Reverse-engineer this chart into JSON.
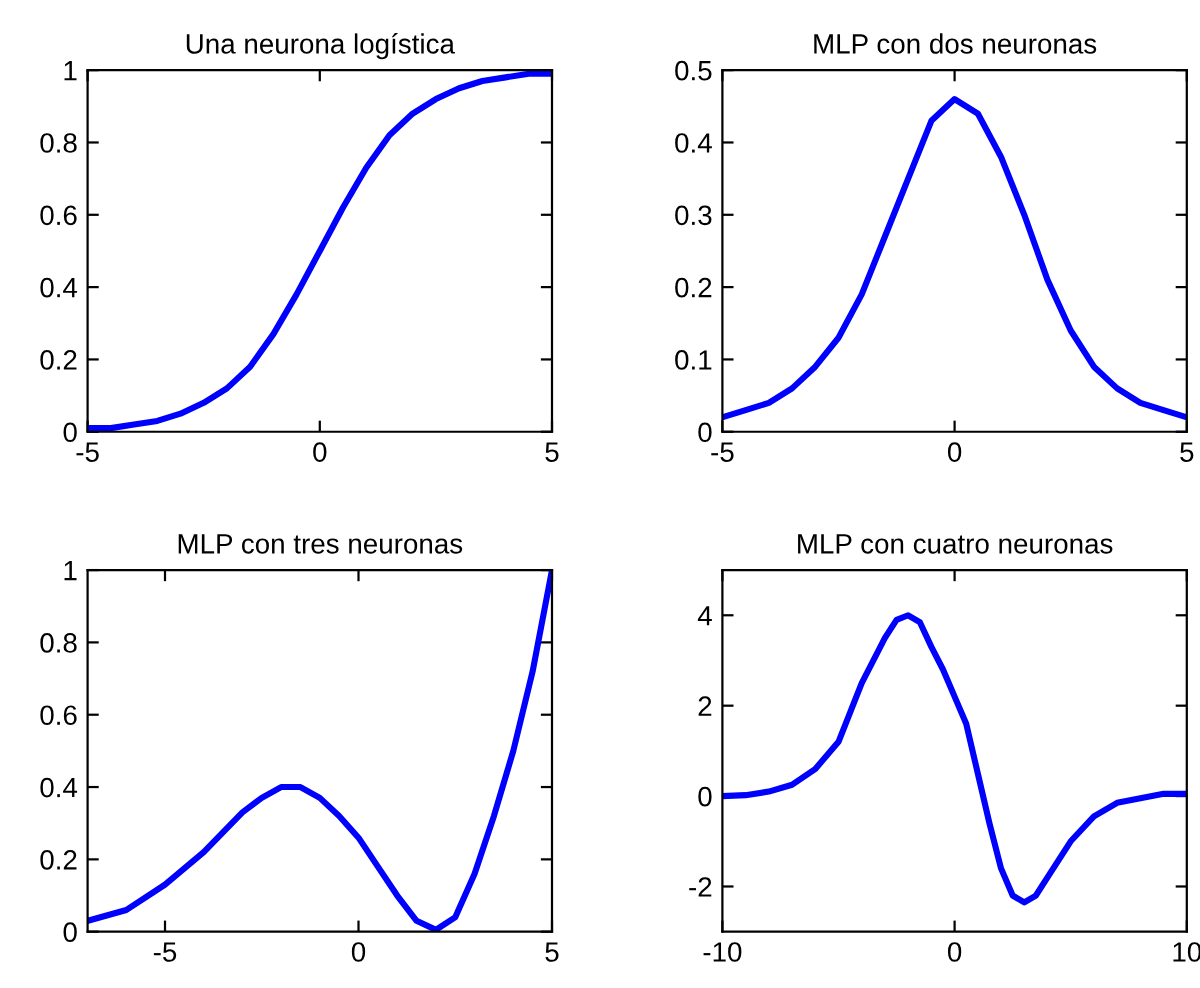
{
  "chart_data": [
    {
      "type": "line",
      "title": "Una neurona logística",
      "x": [
        -5,
        -4.5,
        -4,
        -3.5,
        -3,
        -2.5,
        -2,
        -1.5,
        -1,
        -0.5,
        0,
        0.5,
        1,
        1.5,
        2,
        2.5,
        3,
        3.5,
        4,
        4.5,
        5
      ],
      "series": [
        {
          "color": "#0000ff",
          "values": [
            0.01,
            0.01,
            0.02,
            0.03,
            0.05,
            0.08,
            0.12,
            0.18,
            0.27,
            0.38,
            0.5,
            0.62,
            0.73,
            0.82,
            0.88,
            0.92,
            0.95,
            0.97,
            0.98,
            0.99,
            0.99
          ]
        }
      ],
      "xlim": [
        -5,
        5
      ],
      "xticks": [
        -5,
        0,
        5
      ],
      "ylim": [
        0,
        1
      ],
      "yticks": [
        0,
        0.2,
        0.4,
        0.6,
        0.8,
        1
      ],
      "grid": false,
      "legend": false,
      "marker": "none",
      "line_style": "solid"
    },
    {
      "type": "line",
      "title": "MLP con dos neuronas",
      "x": [
        -5,
        -4.5,
        -4,
        -3.5,
        -3,
        -2.5,
        -2,
        -1.5,
        -1,
        -0.5,
        0,
        0.5,
        1,
        1.5,
        2,
        2.5,
        3,
        3.5,
        4,
        4.5,
        5
      ],
      "series": [
        {
          "color": "#0000ff",
          "values": [
            0.02,
            0.03,
            0.04,
            0.06,
            0.09,
            0.13,
            0.19,
            0.27,
            0.35,
            0.43,
            0.46,
            0.44,
            0.38,
            0.3,
            0.21,
            0.14,
            0.09,
            0.06,
            0.04,
            0.03,
            0.02
          ]
        }
      ],
      "xlim": [
        -5,
        5
      ],
      "xticks": [
        -5,
        0,
        5
      ],
      "ylim": [
        0,
        0.5
      ],
      "yticks": [
        0,
        0.1,
        0.2,
        0.3,
        0.4,
        0.5
      ],
      "grid": false,
      "legend": false,
      "marker": "none",
      "line_style": "solid"
    },
    {
      "type": "line",
      "title": "MLP con tres neuronas",
      "x": [
        -7,
        -6,
        -5,
        -4,
        -3,
        -2.5,
        -2,
        -1.5,
        -1,
        -0.5,
        0,
        0.5,
        1,
        1.5,
        2,
        2.5,
        3,
        3.5,
        4,
        4.5,
        5
      ],
      "series": [
        {
          "color": "#0000ff",
          "values": [
            0.03,
            0.06,
            0.13,
            0.22,
            0.33,
            0.37,
            0.4,
            0.4,
            0.37,
            0.32,
            0.26,
            0.18,
            0.1,
            0.03,
            0.005,
            0.04,
            0.16,
            0.32,
            0.5,
            0.72,
            1.0
          ]
        }
      ],
      "xlim": [
        -7,
        5
      ],
      "xticks": [
        -5,
        0,
        5
      ],
      "ylim": [
        0,
        1
      ],
      "yticks": [
        0,
        0.2,
        0.4,
        0.6,
        0.8,
        1
      ],
      "grid": false,
      "legend": false,
      "marker": "none",
      "line_style": "solid"
    },
    {
      "type": "line",
      "title": "MLP con cuatro neuronas",
      "x": [
        -10,
        -9,
        -8,
        -7,
        -6,
        -5,
        -4,
        -3,
        -2.5,
        -2,
        -1.5,
        -1,
        -0.5,
        0,
        0.5,
        1,
        1.5,
        2,
        2.5,
        3,
        3.5,
        4,
        5,
        6,
        7,
        8,
        9,
        10
      ],
      "series": [
        {
          "color": "#0000ff",
          "values": [
            0,
            0.02,
            0.1,
            0.25,
            0.6,
            1.2,
            2.5,
            3.5,
            3.9,
            4.0,
            3.85,
            3.3,
            2.8,
            2.2,
            1.6,
            0.5,
            -0.6,
            -1.6,
            -2.2,
            -2.35,
            -2.2,
            -1.8,
            -1.0,
            -0.45,
            -0.15,
            -0.05,
            0.05,
            0.05
          ]
        }
      ],
      "xlim": [
        -10,
        10
      ],
      "xticks": [
        -10,
        0,
        10
      ],
      "ylim": [
        -3,
        5
      ],
      "yticks": [
        -2,
        0,
        2,
        4
      ],
      "grid": false,
      "legend": false,
      "marker": "none",
      "line_style": "solid"
    }
  ]
}
